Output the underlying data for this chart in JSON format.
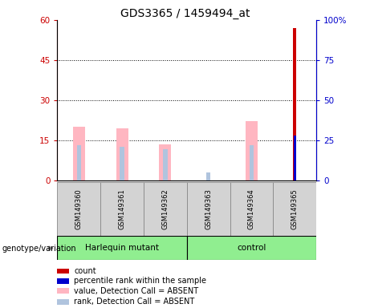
{
  "title": "GDS3365 / 1459494_at",
  "samples": [
    "GSM149360",
    "GSM149361",
    "GSM149362",
    "GSM149363",
    "GSM149364",
    "GSM149365"
  ],
  "left_ylim": [
    0,
    60
  ],
  "right_ylim": [
    0,
    100
  ],
  "left_yticks": [
    0,
    15,
    30,
    45,
    60
  ],
  "right_yticks": [
    0,
    25,
    50,
    75,
    100
  ],
  "right_yticklabels": [
    "0",
    "25",
    "50",
    "75",
    "100%"
  ],
  "count_color": "#CC0000",
  "percentile_color": "#0000CC",
  "absent_value_color": "#FFB6C1",
  "absent_rank_color": "#B0C4DE",
  "count_values": [
    0,
    0,
    0,
    0,
    0,
    57
  ],
  "percentile_values": [
    0,
    0,
    0,
    0,
    0,
    28
  ],
  "absent_value_heights": [
    20.0,
    19.5,
    13.5,
    0,
    22.0,
    0
  ],
  "absent_rank_heights": [
    13.0,
    12.5,
    11.5,
    0,
    13.0,
    0
  ],
  "absent_rank_small": [
    0,
    0,
    0,
    3.0,
    0,
    0
  ],
  "tick_color_left": "#CC0000",
  "tick_color_right": "#0000CC",
  "group1_label": "Harlequin mutant",
  "group2_label": "control",
  "group_color": "#90EE90",
  "geno_label": "genotype/variation",
  "legend_items": [
    [
      "#CC0000",
      "count"
    ],
    [
      "#0000CC",
      "percentile rank within the sample"
    ],
    [
      "#FFB6C1",
      "value, Detection Call = ABSENT"
    ],
    [
      "#B0C4DE",
      "rank, Detection Call = ABSENT"
    ]
  ]
}
